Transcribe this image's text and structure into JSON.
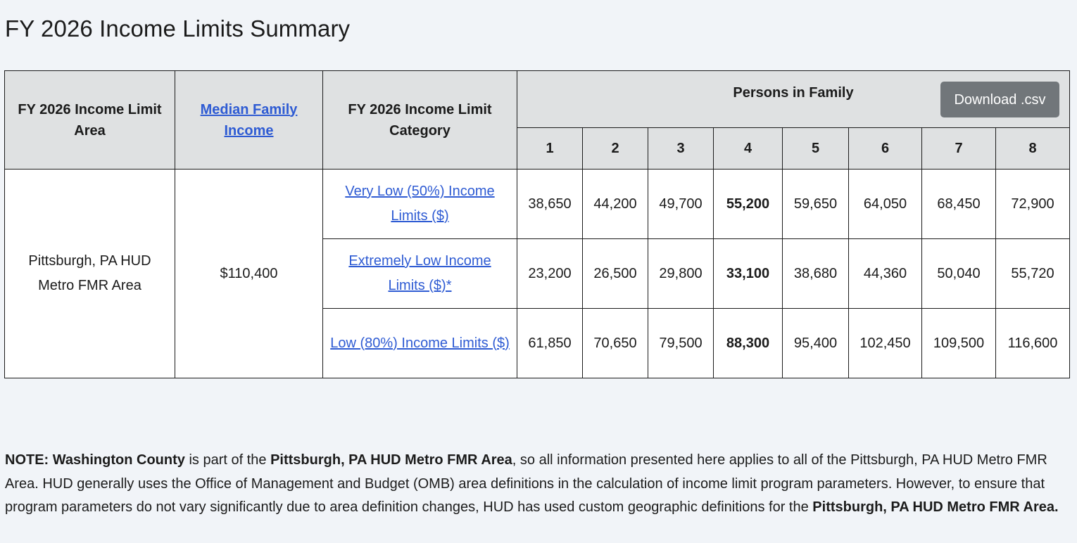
{
  "page_title": "FY 2026 Income Limits Summary",
  "table": {
    "headers": {
      "area": "FY 2026 Income Limit Area",
      "median": "Median Family Income",
      "category": "FY 2026 Income Limit Category",
      "persons": "Persons in Family",
      "person_counts": [
        "1",
        "2",
        "3",
        "4",
        "5",
        "6",
        "7",
        "8"
      ]
    },
    "download_label": "Download .csv",
    "area_name": "Pittsburgh, PA HUD Metro FMR Area",
    "median_income": "$110,400",
    "rows": [
      {
        "category": "Very Low (50%) Income Limits ($)",
        "values": [
          "38,650",
          "44,200",
          "49,700",
          "55,200",
          "59,650",
          "64,050",
          "68,450",
          "72,900"
        ]
      },
      {
        "category": "Extremely Low Income Limits ($)*",
        "values": [
          "23,200",
          "26,500",
          "29,800",
          "33,100",
          "38,680",
          "44,360",
          "50,040",
          "55,720"
        ]
      },
      {
        "category": "Low (80%) Income Limits ($)",
        "values": [
          "61,850",
          "70,650",
          "79,500",
          "88,300",
          "95,400",
          "102,450",
          "109,500",
          "116,600"
        ]
      }
    ]
  },
  "note": {
    "label": "NOTE:",
    "county": "Washington County",
    "text1": " is part of the ",
    "area": "Pittsburgh, PA HUD Metro FMR Area",
    "text2": ", so all information presented here applies to all of the Pittsburgh, PA HUD Metro FMR Area. HUD generally uses the Office of Management and Budget (OMB) area definitions in the calculation of income limit program parameters. However, to ensure that program parameters do not vary significantly due to area definition changes, HUD has used custom geographic definitions for the ",
    "area_end": "Pittsburgh, PA HUD Metro FMR Area."
  }
}
